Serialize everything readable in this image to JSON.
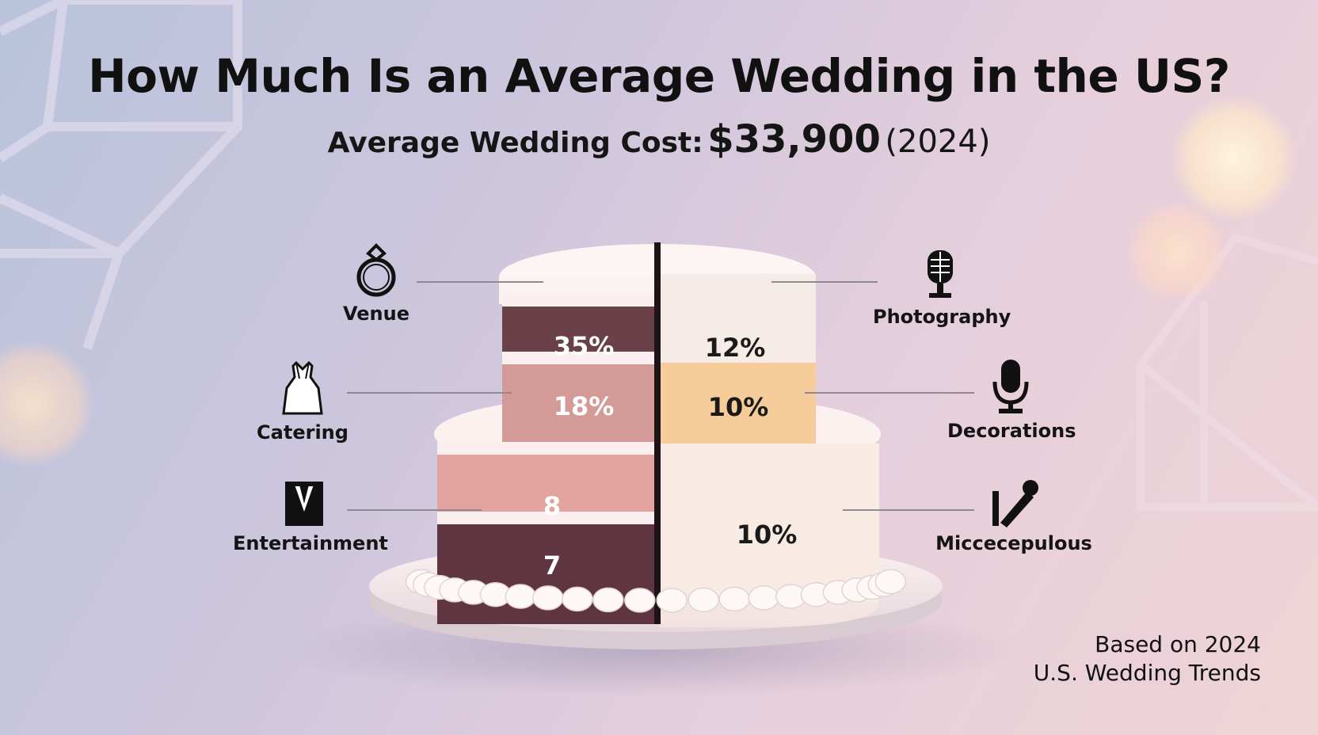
{
  "title": "How Much Is an Average Wedding in the US?",
  "subtitle": {
    "label": "Average Wedding Cost:",
    "amount": "$33,900",
    "year": "(2024)"
  },
  "footnote": {
    "line1": "Based on 2024",
    "line2": "U.S. Wedding Trends"
  },
  "categories": [
    {
      "label": "Venue",
      "icon": "ring-icon"
    },
    {
      "label": "Catering",
      "icon": "dress-icon"
    },
    {
      "label": "Entertainment",
      "icon": "suit-icon"
    },
    {
      "label": "Photography",
      "icon": "microphone-icon"
    },
    {
      "label": "Decorations",
      "icon": "microphone-icon"
    },
    {
      "label": "Miccecepulous",
      "icon": "pen-icon"
    }
  ],
  "chart_data": {
    "type": "bar",
    "title": "How Much Is an Average Wedding in the US?",
    "categories": [
      "Venue",
      "Catering",
      "Entertainment",
      "",
      "Photography",
      "Decorations",
      "Miccecepulous"
    ],
    "segments": [
      {
        "label": "35%",
        "value": 35,
        "color": "#6b4149"
      },
      {
        "label": "18%",
        "value": 18,
        "color": "#d39a98"
      },
      {
        "label": "8",
        "value": 8,
        "color": "#e3a4a0"
      },
      {
        "label": "7",
        "value": 7,
        "color": "#5e3540"
      },
      {
        "label": "12%",
        "value": 12,
        "color": "#f6ece7"
      },
      {
        "label": "10%",
        "value": 10,
        "color": "#f6cc9a"
      },
      {
        "label": "10%",
        "value": 10,
        "color": "#f7ebe4"
      }
    ]
  }
}
